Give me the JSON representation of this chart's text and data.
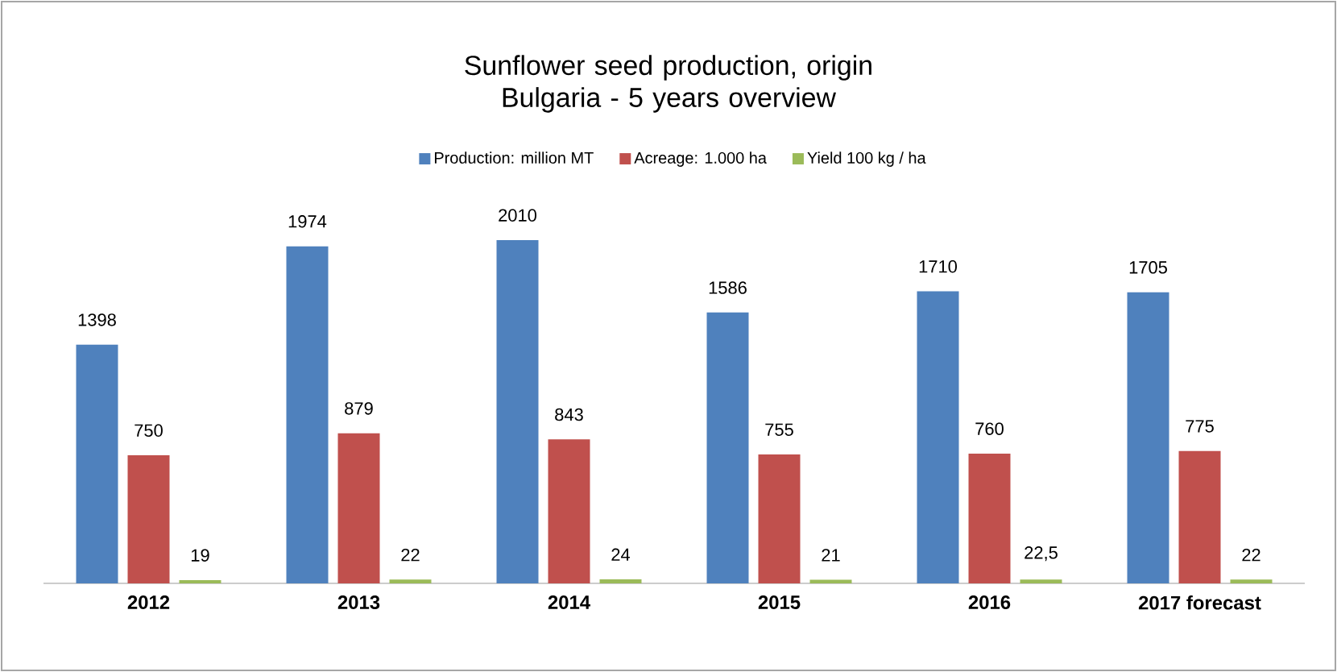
{
  "chart_data": {
    "type": "bar",
    "title": "Sunflower seed production, origin Bulgaria - 5 years overview",
    "categories": [
      "2012",
      "2013",
      "2014",
      "2015",
      "2016",
      "2017 forecast"
    ],
    "series": [
      {
        "name": "Production: million MT",
        "color": "#4f81bd",
        "values": [
          1398,
          1974,
          2010,
          1586,
          1710,
          1705
        ],
        "value_labels": [
          "1398",
          "1974",
          "2010",
          "1586",
          "1710",
          "1705"
        ]
      },
      {
        "name": "Acreage: 1.000 ha",
        "color": "#c0504d",
        "values": [
          750,
          879,
          843,
          755,
          760,
          775
        ],
        "value_labels": [
          "750",
          "879",
          "843",
          "755",
          "760",
          "775"
        ]
      },
      {
        "name": "Yield 100 kg / ha",
        "color": "#9bbb59",
        "values": [
          19,
          22,
          24,
          21,
          22.5,
          22
        ],
        "value_labels": [
          "19",
          "22",
          "24",
          "21",
          "22,5",
          "22"
        ]
      }
    ],
    "legend": "top"
  }
}
